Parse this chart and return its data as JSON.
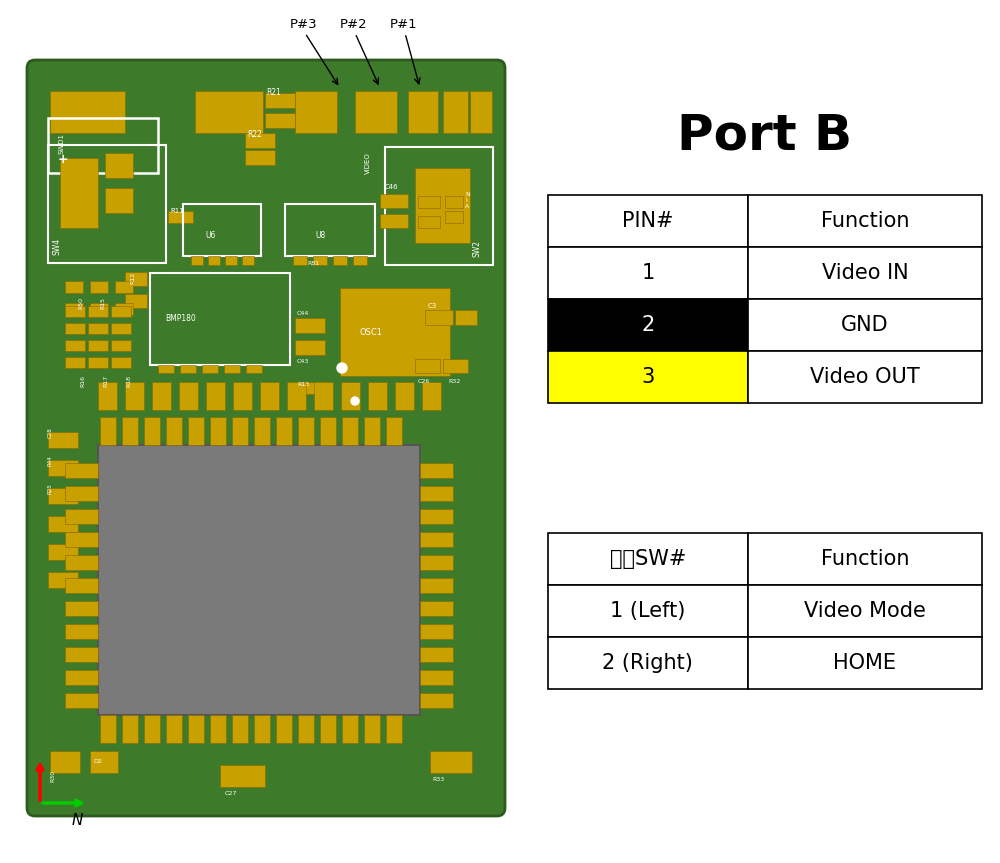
{
  "title": "Port B",
  "title_font": "Courier New",
  "title_fontsize": 36,
  "title_bold": true,
  "table1_headers": [
    "PIN#",
    "Function"
  ],
  "table1_rows": [
    {
      "pin": "1",
      "func": "Video IN",
      "pin_bg": "#ffffff",
      "func_bg": "#ffffff",
      "pin_color": "#000000",
      "func_color": "#000000"
    },
    {
      "pin": "2",
      "func": "GND",
      "pin_bg": "#000000",
      "func_bg": "#ffffff",
      "pin_color": "#ffffff",
      "func_color": "#000000"
    },
    {
      "pin": "3",
      "func": "Video OUT",
      "pin_bg": "#ffff00",
      "func_bg": "#ffffff",
      "pin_color": "#000000",
      "func_color": "#000000"
    }
  ],
  "table2_headers": [
    "开关SW#",
    "Function"
  ],
  "table2_rows": [
    {
      "sw": "1 (Left)",
      "func": "Video Mode"
    },
    {
      "sw": "2 (Right)",
      "func": "HOME"
    }
  ],
  "pcb_label_annotations": [
    "P#3",
    "P#2",
    "P#1"
  ],
  "bg_color": "#ffffff",
  "table_border_color": "#000000",
  "table_border_lw": 1.2,
  "cell_fontsize": 15,
  "header_fontsize": 15,
  "pcb_green": "#3d7a2a",
  "pcb_gold": "#c8a000",
  "pcb_dark_green": "#2d5a1e"
}
